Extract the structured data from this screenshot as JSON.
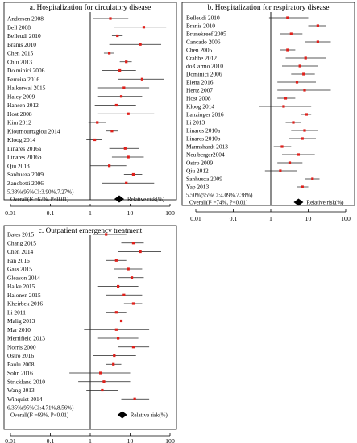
{
  "chart_data": [
    {
      "id": "a",
      "type": "forest",
      "title": "a. Hospitalization for circulatory disease",
      "x_scale": "log",
      "xlim": [
        0.01,
        100
      ],
      "ticks": [
        "0.01",
        "0.1",
        "1",
        "10",
        "100"
      ],
      "legend": "Relative risk(%)",
      "pooled": {
        "line1": "5.33%(95%CI:3.90%,7.27%)",
        "line2": "Overall(I² =67%, P<0.01)",
        "estimate": 5.33
      },
      "studies": [
        {
          "name": "Andersen 2008",
          "rr": 3.2,
          "lo": 1.2,
          "hi": 9.0
        },
        {
          "name": "Bell 2008",
          "rr": 22.0,
          "lo": 4.0,
          "hi": 80.0
        },
        {
          "name": "Belleudi 2010",
          "rr": 4.8,
          "lo": 3.5,
          "hi": 6.5
        },
        {
          "name": "Branis 2010",
          "rr": 18.0,
          "lo": 3.0,
          "hi": 60.0
        },
        {
          "name": "Chen 2015",
          "rr": 3.0,
          "lo": 2.2,
          "hi": 4.0
        },
        {
          "name": "Chiu 2013",
          "rr": 8.0,
          "lo": 5.5,
          "hi": 11.0
        },
        {
          "name": "Do minici 2006",
          "rr": 5.5,
          "lo": 2.0,
          "hi": 14.0
        },
        {
          "name": "Ferreira 2016",
          "rr": 20.0,
          "lo": 5.0,
          "hi": 70.0
        },
        {
          "name": "Haikerwal 2015",
          "rr": 7.0,
          "lo": 1.5,
          "hi": 30.0
        },
        {
          "name": "Haley 2009",
          "rr": 6.0,
          "lo": 1.5,
          "hi": 20.0
        },
        {
          "name": "Hansen 2012",
          "rr": 4.5,
          "lo": 1.3,
          "hi": 14.0
        },
        {
          "name": "Host 2008",
          "rr": 9.0,
          "lo": 1.5,
          "hi": 40.0
        },
        {
          "name": "Kim 2012",
          "rr": 1.5,
          "lo": 0.9,
          "hi": 2.5
        },
        {
          "name": "Kioumourtzglou 2014",
          "rr": 3.5,
          "lo": 2.5,
          "hi": 5.0
        },
        {
          "name": "Kloog 2014",
          "rr": 1.3,
          "lo": 0.8,
          "hi": 2.0
        },
        {
          "name": "Linares 2016a",
          "rr": 7.5,
          "lo": 3.0,
          "hi": 17.0
        },
        {
          "name": "Linares 2016b",
          "rr": 9.0,
          "lo": 3.5,
          "hi": 22.0
        },
        {
          "name": "Qiu 2013",
          "rr": 3.0,
          "lo": 1.0,
          "hi": 8.0
        },
        {
          "name": "Sanhueza 2009",
          "rr": 12.0,
          "lo": 7.0,
          "hi": 20.0
        },
        {
          "name": "Zanobetti 2006",
          "rr": 8.0,
          "lo": 2.0,
          "hi": 40.0
        }
      ]
    },
    {
      "id": "b",
      "type": "forest",
      "title": "b. Hospitalization for respiratory disease",
      "x_scale": "log",
      "xlim": [
        0.01,
        100
      ],
      "ticks": [
        "0.01",
        "0.1",
        "1",
        "10",
        "100"
      ],
      "legend": "Relative risk(%)",
      "pooled": {
        "line1": "5.50%(95%CI:4.09%,7.38%)",
        "line2": "Overall(I² =74%, P<0.01)",
        "estimate": 5.5
      },
      "studies": [
        {
          "name": "Belleudi 2010",
          "rr": 2.8,
          "lo": 0.9,
          "hi": 10.0
        },
        {
          "name": "Branis 2010",
          "rr": 18.0,
          "lo": 10.0,
          "hi": 30.0
        },
        {
          "name": "Brunekreef 2005",
          "rr": 3.5,
          "lo": 1.8,
          "hi": 7.0
        },
        {
          "name": "Cancado 2006",
          "rr": 18.0,
          "lo": 8.0,
          "hi": 40.0
        },
        {
          "name": "Chen 2005",
          "rr": 2.8,
          "lo": 1.8,
          "hi": 4.5
        },
        {
          "name": "Crabbe 2012",
          "rr": 8.5,
          "lo": 2.5,
          "hi": 30.0
        },
        {
          "name": "do Carmo 2010",
          "rr": 6.0,
          "lo": 2.0,
          "hi": 18.0
        },
        {
          "name": "Dominici 2006",
          "rr": 7.5,
          "lo": 3.5,
          "hi": 15.0
        },
        {
          "name": "Elena 2016",
          "rr": 5.0,
          "lo": 1.5,
          "hi": 16.0
        },
        {
          "name": "Hertz 2007",
          "rr": 8.0,
          "lo": 1.5,
          "hi": 40.0
        },
        {
          "name": "Host 2008",
          "rr": 2.5,
          "lo": 1.5,
          "hi": 4.5
        },
        {
          "name": "Kloog 2014",
          "rr": 2.2,
          "lo": 0.5,
          "hi": 12.0
        },
        {
          "name": "Lanzinger 2016",
          "rr": 9.0,
          "lo": 6.5,
          "hi": 12.0
        },
        {
          "name": "Li 2013",
          "rr": 4.0,
          "lo": 2.5,
          "hi": 6.5
        },
        {
          "name": "Linares 2010a",
          "rr": 8.0,
          "lo": 3.5,
          "hi": 18.0
        },
        {
          "name": "Linares 2010b",
          "rr": 7.0,
          "lo": 3.0,
          "hi": 16.0
        },
        {
          "name": "Mannshardt 2013",
          "rr": 2.0,
          "lo": 1.2,
          "hi": 3.5
        },
        {
          "name": "Neu berger2004",
          "rr": 5.5,
          "lo": 2.0,
          "hi": 15.0
        },
        {
          "name": "Ostro 2009",
          "rr": 3.2,
          "lo": 1.5,
          "hi": 7.0
        },
        {
          "name": "Qiu 2012",
          "rr": 1.8,
          "lo": 0.7,
          "hi": 5.0
        },
        {
          "name": "Sanhueza 2009",
          "rr": 13.0,
          "lo": 8.0,
          "hi": 20.0
        },
        {
          "name": "Yap 2013",
          "rr": 7.0,
          "lo": 5.0,
          "hi": 10.0
        }
      ]
    },
    {
      "id": "c",
      "type": "forest",
      "title": "c. Outpatient emergency treatment",
      "x_scale": "log",
      "xlim": [
        0.01,
        100
      ],
      "ticks": [
        "0.01",
        "0.1",
        "1",
        "10",
        "100"
      ],
      "legend": "Relative risk(%)",
      "pooled": {
        "line1": "6.35%(95%CI:4.71%,8.56%)",
        "line2": "Overall(I² =69%, P<0.01)",
        "estimate": 6.35
      },
      "studies": [
        {
          "name": "Bates 2015",
          "rr": 2.5,
          "lo": 1.2,
          "hi": 8.0
        },
        {
          "name": "Chang 2015",
          "rr": 12.0,
          "lo": 6.0,
          "hi": 22.0
        },
        {
          "name": "Chen 2014",
          "rr": 18.0,
          "lo": 5.0,
          "hi": 60.0
        },
        {
          "name": "Fan 2016",
          "rr": 4.5,
          "lo": 2.5,
          "hi": 8.0
        },
        {
          "name": "Gass 2015",
          "rr": 9.0,
          "lo": 4.0,
          "hi": 20.0
        },
        {
          "name": "Gleason 2014",
          "rr": 11.0,
          "lo": 5.0,
          "hi": 22.0
        },
        {
          "name": "Haike 2015",
          "rr": 5.0,
          "lo": 1.5,
          "hi": 16.0
        },
        {
          "name": "Halonen 2015",
          "rr": 7.0,
          "lo": 2.5,
          "hi": 20.0
        },
        {
          "name": "Kheirbek 2016",
          "rr": 12.0,
          "lo": 7.0,
          "hi": 20.0
        },
        {
          "name": "Li 2011",
          "rr": 4.5,
          "lo": 2.5,
          "hi": 8.0
        },
        {
          "name": "Malig 2013",
          "rr": 6.0,
          "lo": 3.0,
          "hi": 12.0
        },
        {
          "name": "Mar 2010",
          "rr": 4.5,
          "lo": 0.7,
          "hi": 30.0
        },
        {
          "name": "Merrifield 2013",
          "rr": 5.0,
          "lo": 1.5,
          "hi": 16.0
        },
        {
          "name": "Norris 2000",
          "rr": 12.0,
          "lo": 5.0,
          "hi": 30.0
        },
        {
          "name": "Ostro 2016",
          "rr": 4.0,
          "lo": 1.2,
          "hi": 14.0
        },
        {
          "name": "Paulu 2008",
          "rr": 3.8,
          "lo": 2.5,
          "hi": 6.0
        },
        {
          "name": "Sohn 2016",
          "rr": 1.8,
          "lo": 0.3,
          "hi": 10.0
        },
        {
          "name": "Strickland 2010",
          "rr": 2.2,
          "lo": 0.5,
          "hi": 10.0
        },
        {
          "name": "Wang 2013",
          "rr": 2.0,
          "lo": 0.8,
          "hi": 5.0
        },
        {
          "name": "Winquist 2014",
          "rr": 13.0,
          "lo": 6.0,
          "hi": 30.0
        }
      ]
    }
  ]
}
